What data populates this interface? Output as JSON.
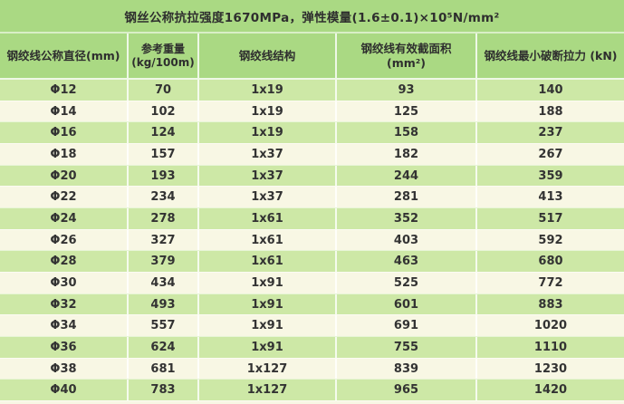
{
  "chart_data": {
    "type": "table",
    "title": "钢丝公称抗拉强度1670MPa，弹性模量(1.6±0.1)×10⁵N/mm²",
    "columns": [
      "钢绞线公称直径(mm)",
      "参考重量 (kg/100m)",
      "钢绞线结构",
      "钢绞线有效截面积 (mm²)",
      "钢绞线最小破断拉力 (kN)"
    ],
    "rows": [
      [
        "Φ12",
        "70",
        "1x19",
        "93",
        "140"
      ],
      [
        "Φ14",
        "102",
        "1x19",
        "125",
        "188"
      ],
      [
        "Φ16",
        "124",
        "1x19",
        "158",
        "237"
      ],
      [
        "Φ18",
        "157",
        "1x37",
        "182",
        "267"
      ],
      [
        "Φ20",
        "193",
        "1x37",
        "244",
        "359"
      ],
      [
        "Φ22",
        "234",
        "1x37",
        "281",
        "413"
      ],
      [
        "Φ24",
        "278",
        "1x61",
        "352",
        "517"
      ],
      [
        "Φ26",
        "327",
        "1x61",
        "403",
        "592"
      ],
      [
        "Φ28",
        "379",
        "1x61",
        "463",
        "680"
      ],
      [
        "Φ30",
        "434",
        "1x91",
        "525",
        "772"
      ],
      [
        "Φ32",
        "493",
        "1x91",
        "601",
        "883"
      ],
      [
        "Φ34",
        "557",
        "1x91",
        "691",
        "1020"
      ],
      [
        "Φ36",
        "624",
        "1x91",
        "755",
        "1110"
      ],
      [
        "Φ38",
        "681",
        "1x127",
        "839",
        "1230"
      ],
      [
        "Φ40",
        "783",
        "1x127",
        "965",
        "1420"
      ]
    ],
    "layout": {
      "striping": "odd rows green, even rows cream",
      "grid": "white separators"
    }
  },
  "header": {
    "col1": "钢绞线公称直径(mm)",
    "col2_line1": "参考重量",
    "col2_line2": "(kg/100m)",
    "col3": "钢绞线结构",
    "col4": "钢绞线有效截面积 (mm²)",
    "col5": "钢绞线最小破断拉力 (kN)"
  },
  "colors": {
    "title_band_green": "#aad983",
    "row_green": "#cde8a6",
    "row_cream": "#f8f7e4",
    "separator_white": "#ffffff",
    "text": "#2e2e2e"
  }
}
